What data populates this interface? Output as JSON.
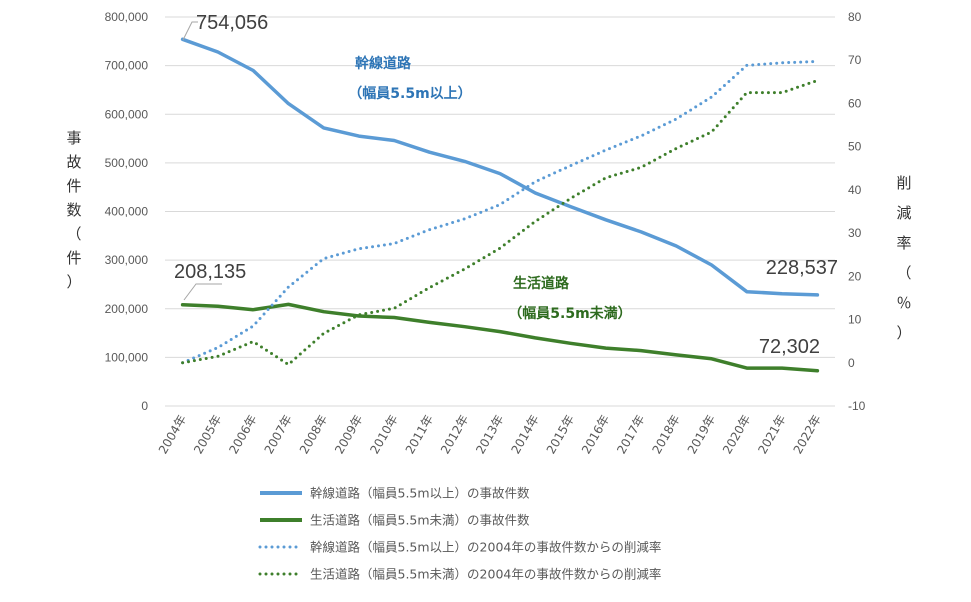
{
  "chart_data": {
    "type": "line",
    "categories": [
      "2004年",
      "2005年",
      "2006年",
      "2007年",
      "2008年",
      "2009年",
      "2010年",
      "2011年",
      "2012年",
      "2013年",
      "2014年",
      "2015年",
      "2016年",
      "2017年",
      "2018年",
      "2019年",
      "2020年",
      "2021年",
      "2022年"
    ],
    "left_axis": {
      "label_chars": [
        "事",
        "故",
        "件",
        "数",
        "（",
        "件",
        "）"
      ],
      "ylim": [
        0,
        800000
      ],
      "ticks": [
        0,
        100000,
        200000,
        300000,
        400000,
        500000,
        600000,
        700000,
        800000
      ],
      "tick_labels": [
        "0",
        "100,000",
        "200,000",
        "300,000",
        "400,000",
        "500,000",
        "600,000",
        "700,000",
        "800,000"
      ]
    },
    "right_axis": {
      "label_chars": [
        "削",
        "減",
        "率",
        "（",
        "％",
        "）"
      ],
      "ylim": [
        -10,
        80
      ],
      "ticks": [
        -10,
        0,
        10,
        20,
        30,
        40,
        50,
        60,
        70,
        80
      ],
      "tick_labels": [
        "-10",
        "0",
        "10",
        "20",
        "30",
        "40",
        "50",
        "60",
        "70",
        "80"
      ]
    },
    "series": [
      {
        "name": "幹線道路（幅員5.5m以上）の事故件数",
        "axis": "left",
        "style": "solid",
        "color": "#5b9bd5",
        "values": [
          754056,
          728000,
          690000,
          622000,
          572000,
          555000,
          546000,
          522000,
          503000,
          478000,
          438000,
          410000,
          383000,
          358000,
          329000,
          290000,
          235000,
          231000,
          228537
        ]
      },
      {
        "name": "生活道路（幅員5.5m未満）の事故件数",
        "axis": "left",
        "style": "solid",
        "color": "#3e7f2b",
        "values": [
          208135,
          205000,
          198000,
          209000,
          194000,
          185000,
          182000,
          172000,
          163000,
          153000,
          140000,
          129000,
          119000,
          114000,
          105000,
          97000,
          78000,
          78000,
          72302
        ]
      },
      {
        "name": "幹線道路（幅員5.5m以上）の2004年の事故件数からの削減率",
        "axis": "right",
        "style": "dotted",
        "color": "#5b9bd5",
        "values": [
          0.0,
          3.5,
          8.5,
          17.5,
          24.1,
          26.4,
          27.6,
          30.8,
          33.3,
          36.6,
          41.9,
          45.6,
          49.2,
          52.5,
          56.4,
          61.5,
          68.8,
          69.4,
          69.7
        ]
      },
      {
        "name": "生活道路（幅員5.5m未満）の2004年の事故件数からの削減率",
        "axis": "right",
        "style": "dotted",
        "color": "#3e7f2b",
        "values": [
          0.0,
          1.5,
          4.9,
          -0.4,
          6.8,
          11.1,
          12.6,
          17.4,
          21.7,
          26.5,
          32.7,
          38.0,
          42.8,
          45.2,
          49.6,
          53.4,
          62.5,
          62.5,
          65.3
        ]
      }
    ],
    "callouts": [
      {
        "text": "754,056",
        "series": 0,
        "index": 0
      },
      {
        "text": "228,537",
        "series": 0,
        "index": 18
      },
      {
        "text": "208,135",
        "series": 1,
        "index": 0
      },
      {
        "text": "72,302",
        "series": 1,
        "index": 18
      }
    ],
    "annotations": [
      {
        "line1": "幹線道路",
        "line2": "（幅員5.5m以上）",
        "color": "#2e75b6"
      },
      {
        "line1": "生活道路",
        "line2": "（幅員5.5m未満）",
        "color": "#2e6b1f"
      }
    ]
  }
}
